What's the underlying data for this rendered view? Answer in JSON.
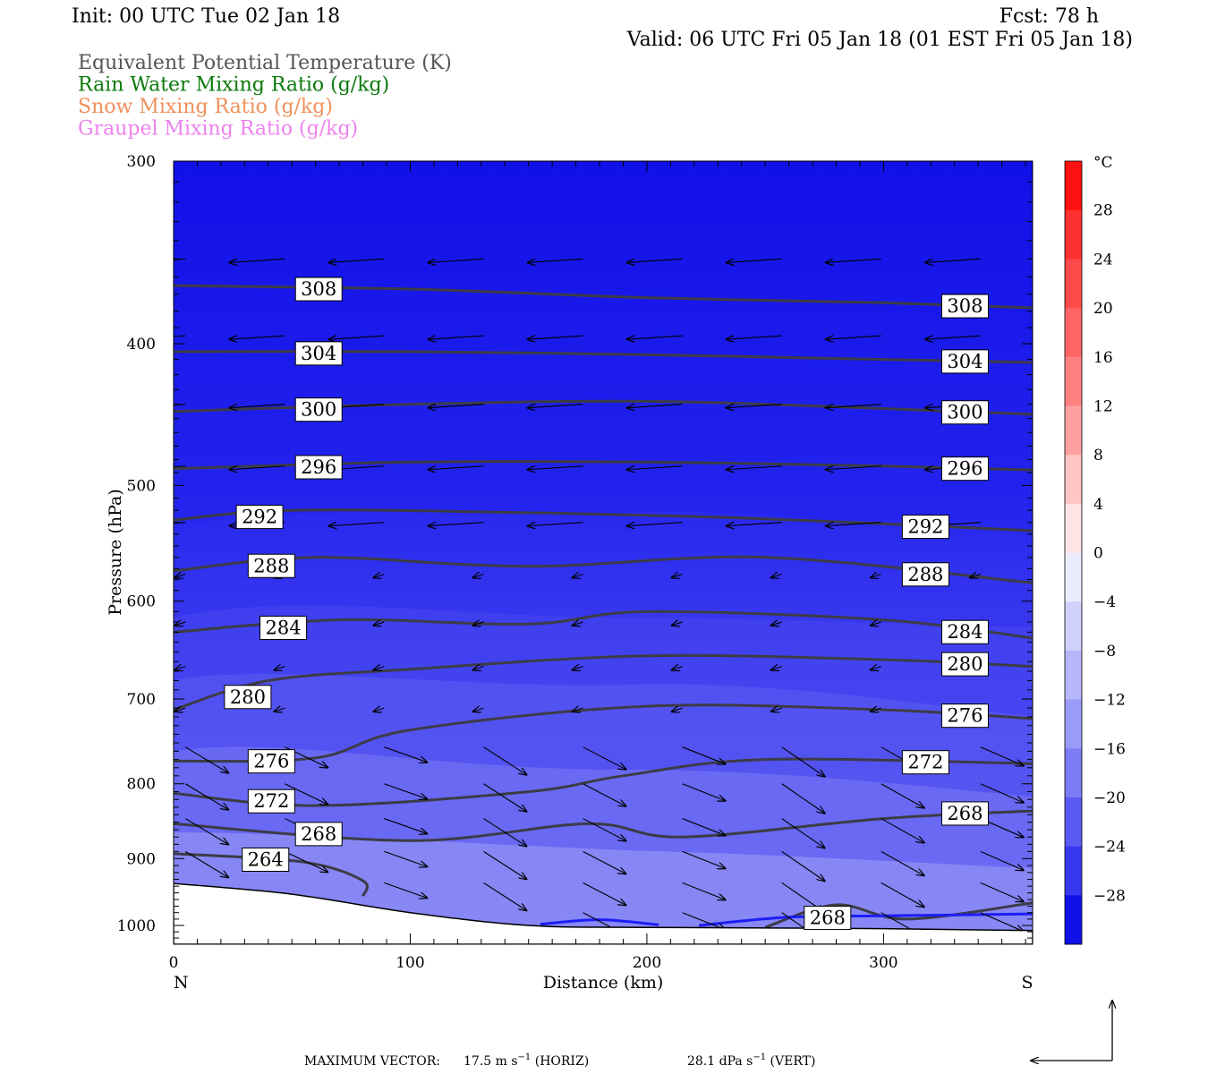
{
  "header": {
    "init": "Init: 00 UTC Tue 02 Jan 18",
    "fcst": "Fcst:   78 h",
    "valid": "Valid: 06 UTC Fri 05 Jan 18 (01 EST Fri 05 Jan 18)",
    "legend": [
      {
        "text": "Equivalent Potential Temperature (K)",
        "color": "#555555"
      },
      {
        "text": "Rain Water Mixing Ratio (g/kg)",
        "color": "#0b7a0b"
      },
      {
        "text": "Snow Mixing Ratio (g/kg)",
        "color": "#f0905a"
      },
      {
        "text": "Graupel Mixing Ratio (g/kg)",
        "color": "#ee82ee"
      }
    ]
  },
  "axes": {
    "ylabel": "Pressure (hPa)",
    "xlabel": "Distance (km)",
    "left_end": "N",
    "right_end": "S",
    "yticks": [
      "300",
      "400",
      "500",
      "600",
      "700",
      "800",
      "900",
      "1000"
    ],
    "xticks": [
      "0",
      "100",
      "200",
      "300"
    ]
  },
  "colorbar": {
    "unit": "°C",
    "labels": [
      "28",
      "24",
      "20",
      "16",
      "12",
      "8",
      "4",
      "0",
      "−4",
      "−8",
      "−12",
      "−16",
      "−20",
      "−24",
      "−28"
    ]
  },
  "footer": {
    "prefix": "MAXIMUM VECTOR:",
    "horiz_value": "17.5 m s",
    "horiz_suffix": " (HORIZ)",
    "vert_value": "28.1 dPa s",
    "vert_suffix": " (VERT)",
    "exponent": "−1"
  },
  "chart_data": {
    "type": "heatmap",
    "title": "",
    "xlabel": "Distance (km)",
    "ylabel": "Pressure (hPa)",
    "xlim": [
      0,
      363
    ],
    "ylim": [
      1030,
      300
    ],
    "y_scale": "log",
    "shading": "Temperature (°C)",
    "temperature_levels": [
      -28,
      -24,
      -20,
      -16,
      -12,
      -8,
      -4,
      0,
      4,
      8,
      12,
      16,
      20,
      24,
      28
    ],
    "theta_e_contours": [
      {
        "label": "308",
        "points": [
          [
            0,
            365
          ],
          [
            100,
            367
          ],
          [
            200,
            372
          ],
          [
            300,
            375
          ],
          [
            363,
            378
          ]
        ]
      },
      {
        "label": "304",
        "points": [
          [
            0,
            405
          ],
          [
            100,
            405
          ],
          [
            200,
            407
          ],
          [
            300,
            410
          ],
          [
            363,
            412
          ]
        ]
      },
      {
        "label": "300",
        "points": [
          [
            0,
            445
          ],
          [
            100,
            440
          ],
          [
            200,
            438
          ],
          [
            300,
            443
          ],
          [
            363,
            447
          ]
        ]
      },
      {
        "label": "296",
        "points": [
          [
            0,
            487
          ],
          [
            100,
            482
          ],
          [
            200,
            482
          ],
          [
            300,
            485
          ],
          [
            363,
            488
          ]
        ]
      },
      {
        "label": "292",
        "points": [
          [
            0,
            528
          ],
          [
            50,
            520
          ],
          [
            150,
            522
          ],
          [
            250,
            527
          ],
          [
            363,
            537
          ]
        ]
      },
      {
        "label": "288",
        "points": [
          [
            0,
            572
          ],
          [
            60,
            560
          ],
          [
            150,
            568
          ],
          [
            250,
            560
          ],
          [
            363,
            583
          ]
        ]
      },
      {
        "label": "284",
        "points": [
          [
            0,
            630
          ],
          [
            70,
            618
          ],
          [
            150,
            622
          ],
          [
            200,
            610
          ],
          [
            300,
            618
          ],
          [
            363,
            636
          ]
        ]
      },
      {
        "label": "280",
        "points": [
          [
            0,
            712
          ],
          [
            40,
            680
          ],
          [
            100,
            668
          ],
          [
            200,
            654
          ],
          [
            300,
            658
          ],
          [
            363,
            665
          ]
        ]
      },
      {
        "label": "276",
        "points": [
          [
            0,
            772
          ],
          [
            60,
            768
          ],
          [
            100,
            735
          ],
          [
            200,
            708
          ],
          [
            300,
            712
          ],
          [
            363,
            722
          ]
        ]
      },
      {
        "label": "272",
        "points": [
          [
            0,
            812
          ],
          [
            60,
            828
          ],
          [
            150,
            810
          ],
          [
            190,
            790
          ],
          [
            250,
            770
          ],
          [
            363,
            775
          ]
        ]
      },
      {
        "label": "268",
        "points": [
          [
            0,
            852
          ],
          [
            100,
            875
          ],
          [
            175,
            852
          ],
          [
            215,
            870
          ],
          [
            300,
            845
          ],
          [
            363,
            835
          ]
        ]
      },
      {
        "label": "264",
        "points": [
          [
            0,
            893
          ],
          [
            55,
            905
          ],
          [
            80,
            932
          ],
          [
            80,
            955
          ]
        ]
      },
      {
        "label": "268",
        "points": [
          [
            250,
            1003
          ],
          [
            280,
            968
          ],
          [
            310,
            990
          ],
          [
            363,
            965
          ]
        ]
      }
    ],
    "terrain_pressure": [
      [
        0,
        936
      ],
      [
        50,
        952
      ],
      [
        100,
        980
      ],
      [
        150,
        1000
      ],
      [
        200,
        1003
      ],
      [
        300,
        1005
      ],
      [
        363,
        1008
      ]
    ],
    "max_vector": {
      "horiz": "17.5 m s-1",
      "vert": "28.1 dPa s-1"
    }
  }
}
